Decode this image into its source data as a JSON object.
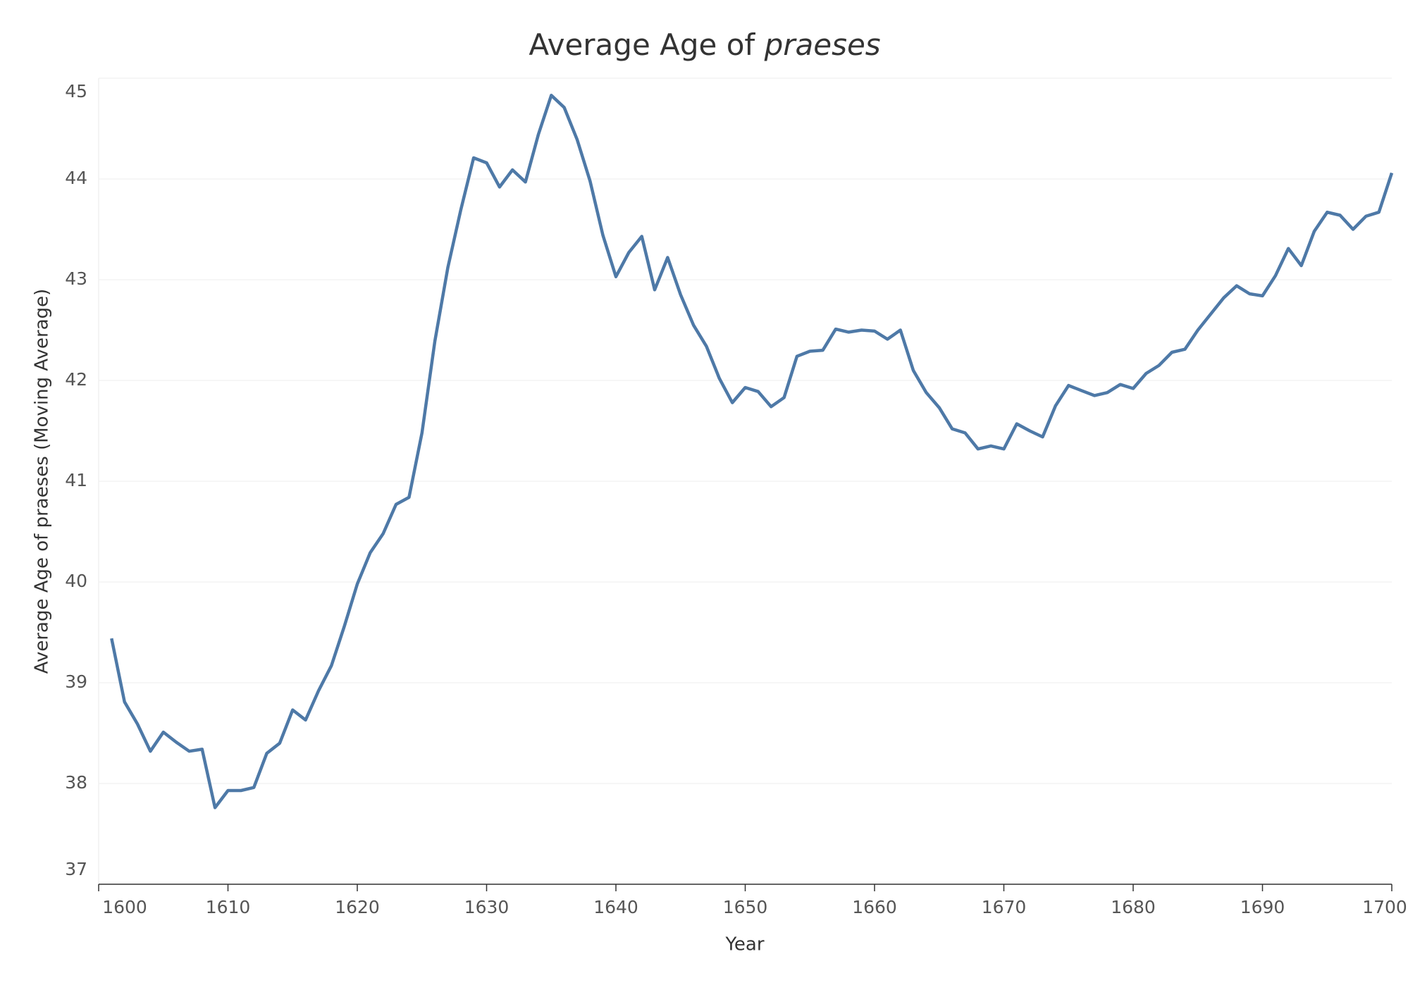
{
  "chart_data": {
    "type": "line",
    "title": "Average Age of praeses",
    "x_label": "Year",
    "y_label": "Average Age of praeses (Moving Average)",
    "x": [
      1601,
      1602,
      1603,
      1604,
      1605,
      1606,
      1607,
      1608,
      1609,
      1610,
      1611,
      1612,
      1613,
      1614,
      1615,
      1616,
      1617,
      1618,
      1619,
      1620,
      1621,
      1622,
      1623,
      1624,
      1625,
      1626,
      1627,
      1628,
      1629,
      1630,
      1631,
      1632,
      1633,
      1634,
      1635,
      1636,
      1637,
      1638,
      1639,
      1640,
      1641,
      1642,
      1643,
      1644,
      1645,
      1646,
      1647,
      1648,
      1649,
      1650,
      1651,
      1652,
      1653,
      1654,
      1655,
      1656,
      1657,
      1658,
      1659,
      1660,
      1661,
      1662,
      1663,
      1664,
      1665,
      1666,
      1667,
      1668,
      1669,
      1670,
      1671,
      1672,
      1673,
      1674,
      1675,
      1676,
      1677,
      1678,
      1679,
      1680,
      1681,
      1682,
      1683,
      1684,
      1685,
      1686,
      1687,
      1688,
      1689,
      1690,
      1691,
      1692,
      1693,
      1694,
      1695,
      1696,
      1697,
      1698,
      1699,
      1700
    ],
    "series": [
      {
        "color": "#4e79a7",
        "values": [
          39.44,
          38.81,
          38.59,
          38.32,
          38.51,
          38.41,
          38.32,
          38.34,
          37.76,
          37.93,
          37.93,
          37.96,
          38.3,
          38.4,
          38.73,
          38.63,
          38.92,
          39.17,
          39.56,
          39.98,
          40.29,
          40.48,
          40.77,
          40.84,
          41.48,
          42.39,
          43.12,
          43.69,
          44.21,
          44.16,
          43.92,
          44.09,
          43.97,
          44.44,
          44.83,
          44.71,
          44.39,
          43.98,
          43.44,
          43.03,
          43.27,
          43.43,
          42.9,
          43.22,
          42.85,
          42.55,
          42.34,
          42.02,
          41.78,
          41.93,
          41.89,
          41.74,
          41.83,
          42.24,
          42.29,
          42.3,
          42.51,
          42.48,
          42.5,
          42.49,
          42.41,
          42.5,
          42.1,
          41.88,
          41.73,
          41.52,
          41.48,
          41.32,
          41.35,
          41.32,
          41.57,
          41.5,
          41.44,
          41.75,
          41.95,
          41.9,
          41.85,
          41.88,
          41.96,
          41.92,
          42.07,
          42.15,
          42.28,
          42.31,
          42.5,
          42.66,
          42.82,
          42.94,
          42.86,
          42.84,
          43.04,
          43.31,
          43.14,
          43.48,
          43.67,
          43.64,
          43.5,
          43.63,
          43.67,
          44.06
        ]
      }
    ],
    "xlim": [
      1600,
      1700
    ],
    "xticks": [
      1600,
      1610,
      1620,
      1630,
      1640,
      1650,
      1660,
      1670,
      1680,
      1690,
      1700
    ],
    "ylim": [
      37,
      45
    ],
    "yticks": [
      37,
      38,
      39,
      40,
      41,
      42,
      43,
      44,
      45
    ],
    "grid": true
  }
}
